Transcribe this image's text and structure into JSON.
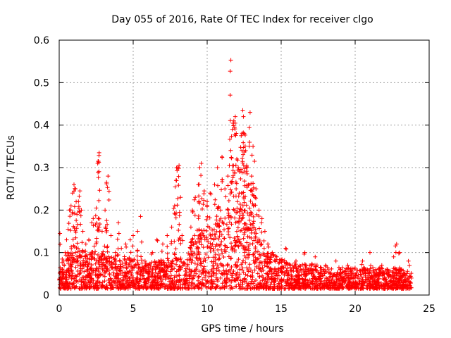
{
  "chart_data": {
    "type": "scatter",
    "title": "Day 055 of 2016, Rate Of TEC Index for receiver clgo",
    "xlabel": "GPS time / hours",
    "ylabel": "ROTI / TECUs",
    "xlim": [
      0,
      25
    ],
    "ylim": [
      0,
      0.6
    ],
    "xticks": [
      0,
      5,
      10,
      15,
      20,
      25
    ],
    "yticks": [
      0,
      0.1,
      0.2,
      0.3,
      0.4,
      0.5,
      0.6
    ],
    "xtick_labels": [
      "0",
      "5",
      "10",
      "15",
      "20",
      "25"
    ],
    "ytick_labels": [
      "0",
      "0.1",
      "0.2",
      "0.3",
      "0.4",
      "0.5",
      "0.6"
    ],
    "grid": true,
    "marker": "+",
    "color": "#ff0000",
    "series": [
      {
        "name": "ROTI",
        "points": [
          [
            0.05,
            0.145
          ],
          [
            0.1,
            0.03
          ],
          [
            0.2,
            0.06
          ],
          [
            0.3,
            0.08
          ],
          [
            0.4,
            0.1
          ],
          [
            0.5,
            0.13
          ],
          [
            0.6,
            0.155
          ],
          [
            0.7,
            0.2
          ],
          [
            0.8,
            0.21
          ],
          [
            0.9,
            0.24
          ],
          [
            1.0,
            0.26
          ],
          [
            1.1,
            0.25
          ],
          [
            1.2,
            0.19
          ],
          [
            1.3,
            0.22
          ],
          [
            1.4,
            0.245
          ],
          [
            1.5,
            0.2
          ],
          [
            1.6,
            0.15
          ],
          [
            1.8,
            0.12
          ],
          [
            2.0,
            0.13
          ],
          [
            2.2,
            0.17
          ],
          [
            2.3,
            0.18
          ],
          [
            2.5,
            0.205
          ],
          [
            2.6,
            0.31
          ],
          [
            2.65,
            0.315
          ],
          [
            2.7,
            0.335
          ],
          [
            2.9,
            0.15
          ],
          [
            3.1,
            0.2
          ],
          [
            3.2,
            0.265
          ],
          [
            3.3,
            0.28
          ],
          [
            3.5,
            0.14
          ],
          [
            3.8,
            0.1
          ],
          [
            4.0,
            0.17
          ],
          [
            4.2,
            0.11
          ],
          [
            4.5,
            0.12
          ],
          [
            4.8,
            0.13
          ],
          [
            5.0,
            0.14
          ],
          [
            5.3,
            0.15
          ],
          [
            5.5,
            0.185
          ],
          [
            5.8,
            0.08
          ],
          [
            6.0,
            0.07
          ],
          [
            6.3,
            0.1
          ],
          [
            6.6,
            0.13
          ],
          [
            7.0,
            0.12
          ],
          [
            7.3,
            0.14
          ],
          [
            7.6,
            0.16
          ],
          [
            7.8,
            0.21
          ],
          [
            7.9,
            0.27
          ],
          [
            8.0,
            0.3
          ],
          [
            8.1,
            0.305
          ],
          [
            8.2,
            0.23
          ],
          [
            8.3,
            0.14
          ],
          [
            8.9,
            0.16
          ],
          [
            9.0,
            0.2
          ],
          [
            9.2,
            0.23
          ],
          [
            9.4,
            0.26
          ],
          [
            9.5,
            0.3
          ],
          [
            9.6,
            0.31
          ],
          [
            9.8,
            0.245
          ],
          [
            10.0,
            0.22
          ],
          [
            10.2,
            0.24
          ],
          [
            10.5,
            0.26
          ],
          [
            10.7,
            0.3
          ],
          [
            10.9,
            0.2
          ],
          [
            11.0,
            0.325
          ],
          [
            11.2,
            0.25
          ],
          [
            11.4,
            0.28
          ],
          [
            11.5,
            0.305
          ],
          [
            11.6,
            0.553
          ],
          [
            11.7,
            0.39
          ],
          [
            11.8,
            0.41
          ],
          [
            11.9,
            0.42
          ],
          [
            12.0,
            0.32
          ],
          [
            12.1,
            0.3
          ],
          [
            12.2,
            0.29
          ],
          [
            12.3,
            0.375
          ],
          [
            12.4,
            0.435
          ],
          [
            12.45,
            0.42
          ],
          [
            12.5,
            0.38
          ],
          [
            12.6,
            0.34
          ],
          [
            12.7,
            0.3
          ],
          [
            12.8,
            0.26
          ],
          [
            12.9,
            0.43
          ],
          [
            13.0,
            0.28
          ],
          [
            13.1,
            0.35
          ],
          [
            13.2,
            0.315
          ],
          [
            13.3,
            0.25
          ],
          [
            13.5,
            0.2
          ],
          [
            13.7,
            0.18
          ],
          [
            13.9,
            0.15
          ],
          [
            14.1,
            0.12
          ],
          [
            14.4,
            0.1
          ],
          [
            14.7,
            0.09
          ],
          [
            15.0,
            0.08
          ],
          [
            15.3,
            0.11
          ],
          [
            15.6,
            0.07
          ],
          [
            16.0,
            0.08
          ],
          [
            16.3,
            0.06
          ],
          [
            16.6,
            0.1
          ],
          [
            17.0,
            0.06
          ],
          [
            17.3,
            0.09
          ],
          [
            17.7,
            0.05
          ],
          [
            18.0,
            0.07
          ],
          [
            18.3,
            0.05
          ],
          [
            18.7,
            0.08
          ],
          [
            19.0,
            0.06
          ],
          [
            19.5,
            0.07
          ],
          [
            20.0,
            0.05
          ],
          [
            20.5,
            0.08
          ],
          [
            21.0,
            0.1
          ],
          [
            21.4,
            0.06
          ],
          [
            21.8,
            0.07
          ],
          [
            22.2,
            0.05
          ],
          [
            22.6,
            0.09
          ],
          [
            22.8,
            0.12
          ],
          [
            23.0,
            0.1
          ],
          [
            23.3,
            0.05
          ],
          [
            23.6,
            0.08
          ],
          [
            23.8,
            0.04
          ]
        ],
        "dense_band": [
          [
            0,
            0.07
          ],
          [
            1,
            0.1
          ],
          [
            2,
            0.09
          ],
          [
            3,
            0.09
          ],
          [
            4,
            0.08
          ],
          [
            5,
            0.07
          ],
          [
            6,
            0.06
          ],
          [
            7,
            0.07
          ],
          [
            8,
            0.09
          ],
          [
            8.5,
            0.06
          ],
          [
            9,
            0.13
          ],
          [
            10,
            0.15
          ],
          [
            11,
            0.17
          ],
          [
            12,
            0.19
          ],
          [
            13,
            0.18
          ],
          [
            13.5,
            0.12
          ],
          [
            14,
            0.09
          ],
          [
            15,
            0.07
          ],
          [
            16,
            0.06
          ],
          [
            17,
            0.06
          ],
          [
            18,
            0.05
          ],
          [
            19,
            0.05
          ],
          [
            20,
            0.05
          ],
          [
            21,
            0.05
          ],
          [
            22,
            0.05
          ],
          [
            23,
            0.05
          ],
          [
            23.8,
            0.04
          ]
        ],
        "x_range": [
          0,
          23.8
        ]
      }
    ]
  }
}
